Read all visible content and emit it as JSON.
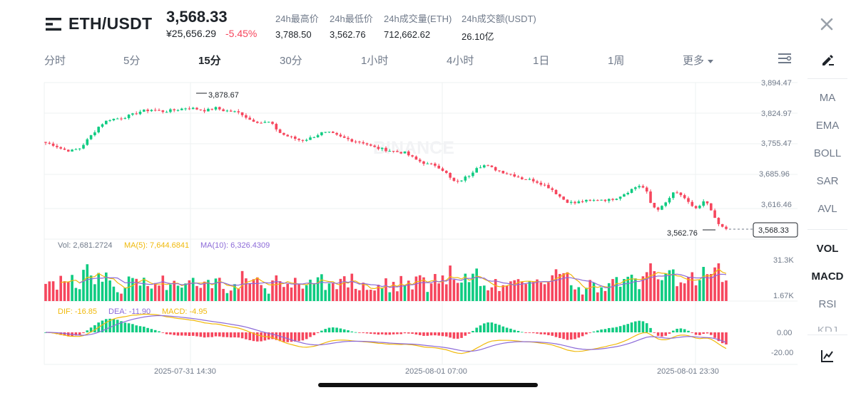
{
  "header": {
    "pair": "ETH/USDT",
    "price": "3,568.33",
    "price_cny": "¥25,656.29",
    "change_pct": "-5.45%",
    "stats": [
      {
        "label": "24h最高价",
        "value": "3,788.50"
      },
      {
        "label": "24h最低价",
        "value": "3,562.76"
      },
      {
        "label": "24h成交量(ETH)",
        "value": "712,662.62"
      },
      {
        "label": "24h成交额(USDT)",
        "value": "26.10亿"
      }
    ]
  },
  "tabs": [
    {
      "label": "分时"
    },
    {
      "label": "5分"
    },
    {
      "label": "15分",
      "active": true
    },
    {
      "label": "30分"
    },
    {
      "label": "1小时"
    },
    {
      "label": "4小时"
    },
    {
      "label": "1日"
    },
    {
      "label": "1周"
    },
    {
      "label": "更多"
    }
  ],
  "sidebar": {
    "main_indicators": [
      "MA",
      "EMA",
      "BOLL",
      "SAR",
      "AVL"
    ],
    "sub_indicators": [
      "VOL",
      "MACD",
      "RSI",
      "KDJ"
    ]
  },
  "colors": {
    "up": "#0ecb81",
    "down": "#f6465d",
    "ma5": "#f0b90b",
    "ma10": "#8c6ad8",
    "dif": "#f0b90b",
    "dea": "#8c6ad8"
  },
  "chart_data": {
    "type": "candlestick",
    "price_axis_ticks": [
      "3,894.47",
      "3,824.97",
      "3,755.47",
      "3,685.96",
      "3,616.46"
    ],
    "high_marker": "3,878.67",
    "low_marker": "3,562.76",
    "last_price": "3,568.33",
    "watermark": "BINANCE",
    "volume": {
      "legend": {
        "vol": "Vol: 2,681.2724",
        "ma5": "MA(5): 7,644.6841",
        "ma10": "MA(10): 6,326.4309"
      },
      "axis": [
        "31.3K",
        "1.67K"
      ]
    },
    "macd": {
      "legend": {
        "dif": "DIF: -16.85",
        "dea": "DEA: -11.90",
        "macd": "MACD: -4.95"
      },
      "axis": [
        "0.00",
        "-20.00"
      ]
    },
    "time_labels": [
      "2025-07-31 14:30",
      "2025-08-01 07:00",
      "2025-08-01 23:30"
    ],
    "close_path": [
      [
        0,
        3760
      ],
      [
        6,
        3755
      ],
      [
        12,
        3745
      ],
      [
        18,
        3742
      ],
      [
        24,
        3748
      ],
      [
        30,
        3770
      ],
      [
        38,
        3800
      ],
      [
        44,
        3812
      ],
      [
        52,
        3815
      ],
      [
        60,
        3822
      ],
      [
        66,
        3830
      ],
      [
        74,
        3834
      ],
      [
        82,
        3830
      ],
      [
        90,
        3833
      ],
      [
        98,
        3838
      ],
      [
        104,
        3836
      ],
      [
        112,
        3832
      ],
      [
        118,
        3838
      ],
      [
        124,
        3832
      ],
      [
        130,
        3830
      ],
      [
        136,
        3826
      ],
      [
        142,
        3812
      ],
      [
        150,
        3805
      ],
      [
        156,
        3806
      ],
      [
        164,
        3780
      ],
      [
        170,
        3773
      ],
      [
        178,
        3765
      ],
      [
        184,
        3770
      ],
      [
        192,
        3782
      ],
      [
        198,
        3782
      ],
      [
        206,
        3772
      ],
      [
        214,
        3765
      ],
      [
        222,
        3760
      ],
      [
        228,
        3750
      ],
      [
        236,
        3745
      ],
      [
        244,
        3740
      ],
      [
        250,
        3738
      ],
      [
        258,
        3722
      ],
      [
        266,
        3712
      ],
      [
        272,
        3710
      ],
      [
        278,
        3696
      ],
      [
        282,
        3680
      ],
      [
        286,
        3670
      ],
      [
        290,
        3678
      ],
      [
        296,
        3690
      ],
      [
        300,
        3706
      ],
      [
        306,
        3710
      ],
      [
        312,
        3702
      ],
      [
        320,
        3693
      ],
      [
        326,
        3688
      ],
      [
        332,
        3680
      ],
      [
        340,
        3676
      ],
      [
        346,
        3668
      ],
      [
        352,
        3658
      ],
      [
        356,
        3646
      ],
      [
        360,
        3635
      ],
      [
        364,
        3628
      ],
      [
        368,
        3625
      ],
      [
        374,
        3630
      ],
      [
        380,
        3630
      ],
      [
        386,
        3634
      ],
      [
        392,
        3632
      ],
      [
        398,
        3638
      ],
      [
        404,
        3648
      ],
      [
        410,
        3660
      ],
      [
        414,
        3665
      ],
      [
        418,
        3655
      ],
      [
        422,
        3620
      ],
      [
        426,
        3612
      ],
      [
        430,
        3618
      ],
      [
        434,
        3635
      ],
      [
        438,
        3650
      ],
      [
        442,
        3645
      ],
      [
        446,
        3630
      ],
      [
        450,
        3620
      ],
      [
        454,
        3612
      ],
      [
        458,
        3628
      ],
      [
        462,
        3620
      ],
      [
        466,
        3590
      ],
      [
        470,
        3572
      ],
      [
        474,
        3568
      ]
    ]
  }
}
